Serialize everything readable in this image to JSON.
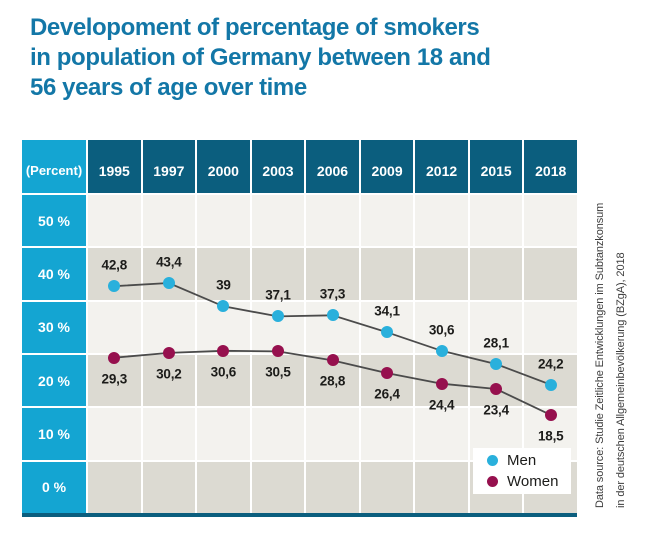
{
  "title": {
    "lines": [
      "Developoment of percentage of smokers",
      "in population of Germany between 18 and",
      "56 years of age over time"
    ]
  },
  "source": {
    "lines": [
      "Data source: Studie Zeitliche Entwicklungen im Subtanzkonsum",
      "in der deutschen Allgemeinbevölkerung (BZgA), 2018"
    ]
  },
  "chart_data": {
    "type": "line",
    "title": "Developoment of percentage of smokers in population of Germany between 18 and 56 years of age over time",
    "unit_label": "(Percent)",
    "categories": [
      "1995",
      "1997",
      "2000",
      "2003",
      "2006",
      "2009",
      "2012",
      "2015",
      "2018"
    ],
    "y_axis": {
      "tick_labels": [
        "50 %",
        "40 %",
        "30 %",
        "20 %",
        "10 %",
        "0 %"
      ],
      "min": 0,
      "max": 60,
      "band_step_percent": 10
    },
    "series": [
      {
        "name": "Men",
        "color": "#29b0dc",
        "values": [
          42.8,
          43.4,
          39,
          37.1,
          37.3,
          34.1,
          30.6,
          28.1,
          24.2
        ],
        "labels": [
          "42,8",
          "43,4",
          "39",
          "37,1",
          "37,3",
          "34,1",
          "30,6",
          "28,1",
          "24,2"
        ],
        "label_position": "above"
      },
      {
        "name": "Women",
        "color": "#96104e",
        "values": [
          29.3,
          30.2,
          30.6,
          30.5,
          28.8,
          26.4,
          24.4,
          23.4,
          18.5
        ],
        "labels": [
          "29,3",
          "30,2",
          "30,6",
          "30,5",
          "28,8",
          "26,4",
          "24,4",
          "23,4",
          "18,5"
        ],
        "label_position": "below"
      }
    ],
    "legend": {
      "position": "bottom-right",
      "entries": [
        "Men",
        "Women"
      ]
    },
    "grid": "alternating horizontal bands (light/dark) with white gridlines between columns and rows",
    "colors": {
      "axis_cell_cyan": "#14a5d2",
      "year_header_teal": "#0b5e7e",
      "band_light": "#f3f2ee",
      "band_dark": "#dcdad2",
      "connector_line": "#4b4b4b",
      "title_blue": "#1377a7",
      "baseline_teal": "#0b5e7e",
      "value_label_text": "#1c1c1a"
    }
  }
}
